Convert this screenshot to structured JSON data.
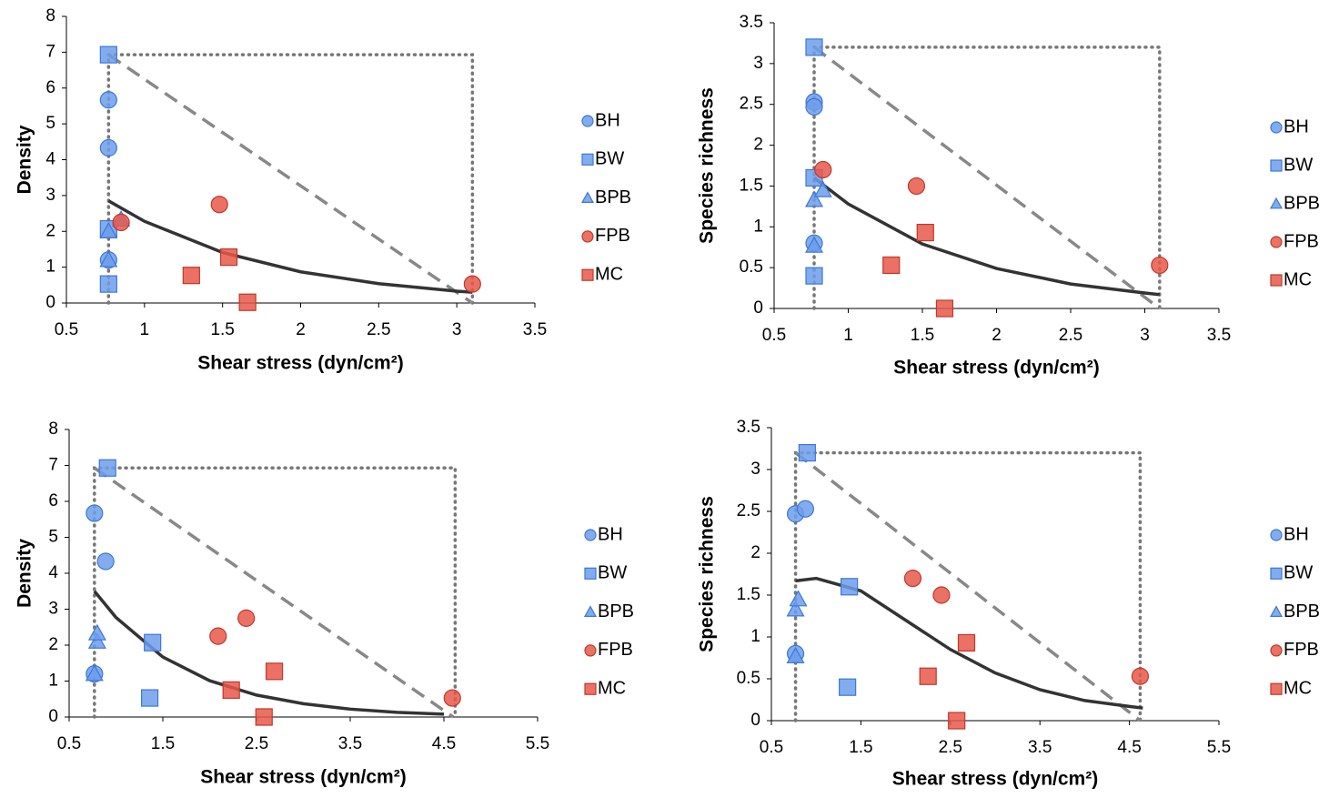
{
  "chart_data": [
    {
      "type": "scatter",
      "ylabel": "Density",
      "xlabel": "Shear stress (dyn/cm²)",
      "xlim": [
        0.5,
        3.5
      ],
      "xticks": [
        0.5,
        1,
        1.5,
        2,
        2.5,
        3,
        3.5
      ],
      "ylim": [
        0,
        8
      ],
      "yticks": [
        0,
        1,
        2,
        3,
        4,
        5,
        6,
        7,
        8
      ],
      "series": [
        {
          "name": "BH",
          "marker": "circle",
          "color": "#6d9eeb",
          "x": [
            0.77,
            0.77,
            0.77
          ],
          "y": [
            5.67,
            4.33,
            1.2
          ]
        },
        {
          "name": "BW",
          "marker": "square",
          "color": "#6d9eeb",
          "x": [
            0.77,
            0.77,
            0.77
          ],
          "y": [
            6.93,
            2.07,
            0.53
          ]
        },
        {
          "name": "BPB",
          "marker": "triangle",
          "color": "#6d9eeb",
          "x": [
            0.77,
            0.77,
            0.85
          ],
          "y": [
            2.0,
            1.2,
            2.33
          ]
        },
        {
          "name": "FPB",
          "marker": "circle",
          "color": "#e8584a",
          "x": [
            0.85,
            1.48,
            3.1
          ],
          "y": [
            2.25,
            2.75,
            0.53
          ]
        },
        {
          "name": "MC",
          "marker": "square",
          "color": "#e8584a",
          "x": [
            1.3,
            1.54,
            1.66
          ],
          "y": [
            0.77,
            1.28,
            0.02
          ]
        }
      ],
      "fit_curve": {
        "x": [
          0.77,
          1,
          1.5,
          2,
          2.5,
          3,
          3.1
        ],
        "y": [
          2.85,
          2.28,
          1.41,
          0.87,
          0.54,
          0.33,
          0.3
        ]
      },
      "boundary_line": {
        "x": [
          0.77,
          3.1
        ],
        "y": [
          6.93,
          0
        ]
      },
      "envelope": {
        "x": [
          0.77,
          0.77,
          3.1,
          3.1
        ],
        "y": [
          0,
          6.93,
          6.93,
          0
        ]
      }
    },
    {
      "type": "scatter",
      "ylabel": "Species richness",
      "xlabel": "Shear stress (dyn/cm²)",
      "xlim": [
        0.5,
        3.5
      ],
      "xticks": [
        0.5,
        1,
        1.5,
        2,
        2.5,
        3,
        3.5
      ],
      "ylim": [
        0,
        3.5
      ],
      "yticks": [
        0,
        0.5,
        1,
        1.5,
        2,
        2.5,
        3,
        3.5
      ],
      "series": [
        {
          "name": "BH",
          "marker": "circle",
          "color": "#6d9eeb",
          "x": [
            0.77,
            0.77,
            0.77
          ],
          "y": [
            2.53,
            2.47,
            0.8
          ]
        },
        {
          "name": "BW",
          "marker": "square",
          "color": "#6d9eeb",
          "x": [
            0.77,
            0.77,
            0.77
          ],
          "y": [
            3.2,
            1.6,
            0.4
          ]
        },
        {
          "name": "BPB",
          "marker": "triangle",
          "color": "#6d9eeb",
          "x": [
            0.77,
            0.77,
            0.83
          ],
          "y": [
            1.33,
            0.77,
            1.45
          ]
        },
        {
          "name": "FPB",
          "marker": "circle",
          "color": "#e8584a",
          "x": [
            0.83,
            1.46,
            3.1
          ],
          "y": [
            1.7,
            1.5,
            0.53
          ]
        },
        {
          "name": "MC",
          "marker": "square",
          "color": "#e8584a",
          "x": [
            1.29,
            1.52,
            1.65
          ],
          "y": [
            0.53,
            0.93,
            0
          ]
        }
      ],
      "fit_curve": {
        "x": [
          0.77,
          1,
          1.5,
          2,
          2.5,
          3,
          3.1
        ],
        "y": [
          1.6,
          1.28,
          0.79,
          0.49,
          0.3,
          0.19,
          0.17
        ]
      },
      "boundary_line": {
        "x": [
          0.77,
          3.1
        ],
        "y": [
          3.2,
          0
        ]
      },
      "envelope": {
        "x": [
          0.77,
          0.77,
          3.1,
          3.1
        ],
        "y": [
          0,
          3.2,
          3.2,
          0
        ]
      }
    },
    {
      "type": "scatter",
      "ylabel": "Density",
      "xlabel": "Shear stress (dyn/cm²)",
      "xlim": [
        0.5,
        5.5
      ],
      "xticks": [
        0.5,
        1.5,
        2.5,
        3.5,
        4.5,
        5.5
      ],
      "ylim": [
        0,
        8
      ],
      "yticks": [
        0,
        1,
        2,
        3,
        4,
        5,
        6,
        7,
        8
      ],
      "series": [
        {
          "name": "BH",
          "marker": "circle",
          "color": "#6d9eeb",
          "x": [
            0.77,
            0.77,
            0.89
          ],
          "y": [
            1.2,
            5.67,
            4.33
          ]
        },
        {
          "name": "BW",
          "marker": "square",
          "color": "#6d9eeb",
          "x": [
            0.91,
            1.39,
            1.36
          ],
          "y": [
            6.93,
            2.07,
            0.53
          ]
        },
        {
          "name": "BPB",
          "marker": "triangle",
          "color": "#6d9eeb",
          "x": [
            0.77,
            0.8,
            0.8
          ],
          "y": [
            1.2,
            2.1,
            2.33
          ]
        },
        {
          "name": "FPB",
          "marker": "circle",
          "color": "#e8584a",
          "x": [
            2.09,
            2.39,
            4.59
          ],
          "y": [
            2.25,
            2.75,
            0.53
          ]
        },
        {
          "name": "MC",
          "marker": "square",
          "color": "#e8584a",
          "x": [
            2.23,
            2.69,
            2.58
          ],
          "y": [
            0.75,
            1.27,
            0
          ]
        }
      ],
      "fit_curve": {
        "x": [
          0.77,
          1,
          1.5,
          2,
          2.5,
          3,
          3.5,
          4,
          4.5
        ],
        "y": [
          3.5,
          2.77,
          1.67,
          1.01,
          0.61,
          0.37,
          0.22,
          0.13,
          0.08
        ]
      },
      "boundary_line": {
        "x": [
          0.77,
          4.6
        ],
        "y": [
          6.93,
          0
        ]
      },
      "envelope": {
        "x": [
          0.77,
          0.77,
          4.62,
          4.62
        ],
        "y": [
          0,
          6.93,
          6.93,
          0
        ]
      }
    },
    {
      "type": "scatter",
      "ylabel": "Species richness",
      "xlabel": "Shear stress (dyn/cm²)",
      "xlim": [
        0.5,
        5.5
      ],
      "xticks": [
        0.5,
        1.5,
        2.5,
        3.5,
        4.5,
        5.5
      ],
      "ylim": [
        0,
        3.5
      ],
      "yticks": [
        0,
        0.5,
        1,
        1.5,
        2,
        2.5,
        3,
        3.5
      ],
      "series": [
        {
          "name": "BH",
          "marker": "circle",
          "color": "#6d9eeb",
          "x": [
            0.77,
            0.88,
            0.77
          ],
          "y": [
            2.47,
            2.53,
            0.8
          ]
        },
        {
          "name": "BW",
          "marker": "square",
          "color": "#6d9eeb",
          "x": [
            0.9,
            1.37,
            1.35
          ],
          "y": [
            3.2,
            1.6,
            0.4
          ]
        },
        {
          "name": "BPB",
          "marker": "triangle",
          "color": "#6d9eeb",
          "x": [
            0.77,
            0.8,
            0.77
          ],
          "y": [
            1.33,
            1.45,
            0.77
          ]
        },
        {
          "name": "FPB",
          "marker": "circle",
          "color": "#e8584a",
          "x": [
            2.08,
            2.4,
            4.62
          ],
          "y": [
            1.7,
            1.5,
            0.53
          ]
        },
        {
          "name": "MC",
          "marker": "square",
          "color": "#e8584a",
          "x": [
            2.25,
            2.68,
            2.57
          ],
          "y": [
            0.53,
            0.93,
            0
          ]
        }
      ],
      "fit_curve": {
        "x": [
          0.77,
          1,
          1.5,
          2,
          2.5,
          3,
          3.5,
          4,
          4.5,
          4.65
        ],
        "y": [
          1.67,
          1.7,
          1.55,
          1.2,
          0.85,
          0.57,
          0.37,
          0.24,
          0.17,
          0.15
        ]
      },
      "boundary_line": {
        "x": [
          0.77,
          4.62
        ],
        "y": [
          3.2,
          0
        ]
      },
      "envelope": {
        "x": [
          0.77,
          0.77,
          4.62,
          4.62
        ],
        "y": [
          0,
          3.2,
          3.2,
          0
        ]
      }
    }
  ]
}
